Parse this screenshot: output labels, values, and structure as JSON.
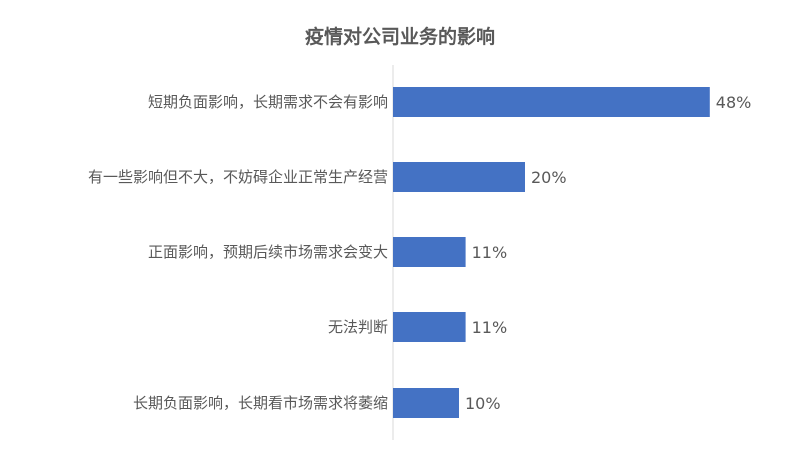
{
  "chart_data": {
    "type": "bar",
    "orientation": "horizontal",
    "title": "疫情对公司业务的影响",
    "categories": [
      "短期负面影响，长期需求不会有影响",
      "有一些影响但不大，不妨碍企业正常生产经营",
      "正面影响，预期后续市场需求会变大",
      "无法判断",
      "长期负面影响，长期看市场需求将萎缩"
    ],
    "values": [
      48,
      20,
      11,
      11,
      10
    ],
    "data_labels": [
      "48%",
      "20%",
      "11%",
      "11%",
      "10%"
    ],
    "unit": "%",
    "xlabel": "",
    "ylabel": "",
    "grid": false,
    "legend": "none",
    "bar_color": "#4472C4"
  }
}
